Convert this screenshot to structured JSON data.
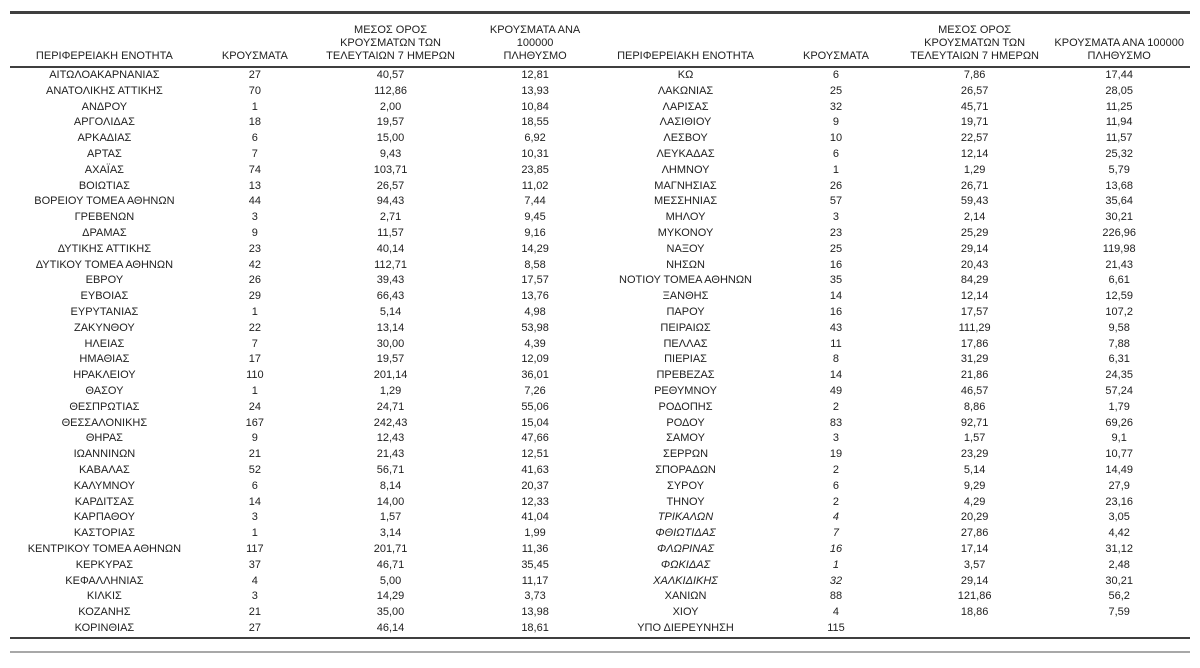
{
  "colors": {
    "text": "#212121",
    "rule_dark": "#3f3f3f",
    "rule_light": "#a8a8a8"
  },
  "headers": {
    "region": "ΠΕΡΙΦΕΡΕΙΑΚΗ ΕΝΟΤΗΤΑ",
    "cases": "ΚΡΟΥΣΜΑΤΑ",
    "avg7": "ΜΕΣΟΣ ΟΡΟΣ\nΚΡΟΥΣΜΑΤΩΝ ΤΩΝ\nΤΕΛΕΥΤΑΙΩΝ 7 ΗΜΕΡΩΝ",
    "per100k": "ΚΡΟΥΣΜΑΤΑ ΑΝΑ 100000\nΠΛΗΘΥΣΜΟ"
  },
  "left_rows": [
    {
      "name": "ΑΙΤΩΛΟΑΚΑΡΝΑΝΙΑΣ",
      "cases": "27",
      "avg7": "40,57",
      "per100k": "12,81"
    },
    {
      "name": "ΑΝΑΤΟΛΙΚΗΣ ΑΤΤΙΚΗΣ",
      "cases": "70",
      "avg7": "112,86",
      "per100k": "13,93"
    },
    {
      "name": "ΑΝΔΡΟΥ",
      "cases": "1",
      "avg7": "2,00",
      "per100k": "10,84"
    },
    {
      "name": "ΑΡΓΟΛΙΔΑΣ",
      "cases": "18",
      "avg7": "19,57",
      "per100k": "18,55"
    },
    {
      "name": "ΑΡΚΑΔΙΑΣ",
      "cases": "6",
      "avg7": "15,00",
      "per100k": "6,92"
    },
    {
      "name": "ΑΡΤΑΣ",
      "cases": "7",
      "avg7": "9,43",
      "per100k": "10,31"
    },
    {
      "name": "ΑΧΑΪΑΣ",
      "cases": "74",
      "avg7": "103,71",
      "per100k": "23,85"
    },
    {
      "name": "ΒΟΙΩΤΙΑΣ",
      "cases": "13",
      "avg7": "26,57",
      "per100k": "11,02"
    },
    {
      "name": "ΒΟΡΕΙΟΥ ΤΟΜΕΑ ΑΘΗΝΩΝ",
      "cases": "44",
      "avg7": "94,43",
      "per100k": "7,44"
    },
    {
      "name": "ΓΡΕΒΕΝΩΝ",
      "cases": "3",
      "avg7": "2,71",
      "per100k": "9,45"
    },
    {
      "name": "ΔΡΑΜΑΣ",
      "cases": "9",
      "avg7": "11,57",
      "per100k": "9,16"
    },
    {
      "name": "ΔΥΤΙΚΗΣ ΑΤΤΙΚΗΣ",
      "cases": "23",
      "avg7": "40,14",
      "per100k": "14,29"
    },
    {
      "name": "ΔΥΤΙΚΟΥ ΤΟΜΕΑ ΑΘΗΝΩΝ",
      "cases": "42",
      "avg7": "112,71",
      "per100k": "8,58"
    },
    {
      "name": "ΕΒΡΟΥ",
      "cases": "26",
      "avg7": "39,43",
      "per100k": "17,57"
    },
    {
      "name": "ΕΥΒΟΙΑΣ",
      "cases": "29",
      "avg7": "66,43",
      "per100k": "13,76"
    },
    {
      "name": "ΕΥΡΥΤΑΝΙΑΣ",
      "cases": "1",
      "avg7": "5,14",
      "per100k": "4,98"
    },
    {
      "name": "ΖΑΚΥΝΘΟΥ",
      "cases": "22",
      "avg7": "13,14",
      "per100k": "53,98"
    },
    {
      "name": "ΗΛΕΙΑΣ",
      "cases": "7",
      "avg7": "30,00",
      "per100k": "4,39"
    },
    {
      "name": "ΗΜΑΘΙΑΣ",
      "cases": "17",
      "avg7": "19,57",
      "per100k": "12,09"
    },
    {
      "name": "ΗΡΑΚΛΕΙΟΥ",
      "cases": "110",
      "avg7": "201,14",
      "per100k": "36,01"
    },
    {
      "name": "ΘΑΣΟΥ",
      "cases": "1",
      "avg7": "1,29",
      "per100k": "7,26"
    },
    {
      "name": "ΘΕΣΠΡΩΤΙΑΣ",
      "cases": "24",
      "avg7": "24,71",
      "per100k": "55,06"
    },
    {
      "name": "ΘΕΣΣΑΛΟΝΙΚΗΣ",
      "cases": "167",
      "avg7": "242,43",
      "per100k": "15,04"
    },
    {
      "name": "ΘΗΡΑΣ",
      "cases": "9",
      "avg7": "12,43",
      "per100k": "47,66"
    },
    {
      "name": "ΙΩΑΝΝΙΝΩΝ",
      "cases": "21",
      "avg7": "21,43",
      "per100k": "12,51"
    },
    {
      "name": "ΚΑΒΑΛΑΣ",
      "cases": "52",
      "avg7": "56,71",
      "per100k": "41,63"
    },
    {
      "name": "ΚΑΛΥΜΝΟΥ",
      "cases": "6",
      "avg7": "8,14",
      "per100k": "20,37"
    },
    {
      "name": "ΚΑΡΔΙΤΣΑΣ",
      "cases": "14",
      "avg7": "14,00",
      "per100k": "12,33"
    },
    {
      "name": "ΚΑΡΠΑΘΟΥ",
      "cases": "3",
      "avg7": "1,57",
      "per100k": "41,04"
    },
    {
      "name": "ΚΑΣΤΟΡΙΑΣ",
      "cases": "1",
      "avg7": "3,14",
      "per100k": "1,99"
    },
    {
      "name": "ΚΕΝΤΡΙΚΟΥ ΤΟΜΕΑ ΑΘΗΝΩΝ",
      "cases": "117",
      "avg7": "201,71",
      "per100k": "11,36"
    },
    {
      "name": "ΚΕΡΚΥΡΑΣ",
      "cases": "37",
      "avg7": "46,71",
      "per100k": "35,45"
    },
    {
      "name": "ΚΕΦΑΛΛΗΝΙΑΣ",
      "cases": "4",
      "avg7": "5,00",
      "per100k": "11,17"
    },
    {
      "name": "ΚΙΛΚΙΣ",
      "cases": "3",
      "avg7": "14,29",
      "per100k": "3,73"
    },
    {
      "name": "ΚΟΖΑΝΗΣ",
      "cases": "21",
      "avg7": "35,00",
      "per100k": "13,98"
    },
    {
      "name": "ΚΟΡΙΝΘΙΑΣ",
      "cases": "27",
      "avg7": "46,14",
      "per100k": "18,61"
    }
  ],
  "right_rows": [
    {
      "name": "ΚΩ",
      "cases": "6",
      "avg7": "7,86",
      "per100k": "17,44"
    },
    {
      "name": "ΛΑΚΩΝΙΑΣ",
      "cases": "25",
      "avg7": "26,57",
      "per100k": "28,05"
    },
    {
      "name": "ΛΑΡΙΣΑΣ",
      "cases": "32",
      "avg7": "45,71",
      "per100k": "11,25"
    },
    {
      "name": "ΛΑΣΙΘΙΟΥ",
      "cases": "9",
      "avg7": "19,71",
      "per100k": "11,94"
    },
    {
      "name": "ΛΕΣΒΟΥ",
      "cases": "10",
      "avg7": "22,57",
      "per100k": "11,57"
    },
    {
      "name": "ΛΕΥΚΑΔΑΣ",
      "cases": "6",
      "avg7": "12,14",
      "per100k": "25,32"
    },
    {
      "name": "ΛΗΜΝΟΥ",
      "cases": "1",
      "avg7": "1,29",
      "per100k": "5,79"
    },
    {
      "name": "ΜΑΓΝΗΣΙΑΣ",
      "cases": "26",
      "avg7": "26,71",
      "per100k": "13,68"
    },
    {
      "name": "ΜΕΣΣΗΝΙΑΣ",
      "cases": "57",
      "avg7": "59,43",
      "per100k": "35,64"
    },
    {
      "name": "ΜΗΛΟΥ",
      "cases": "3",
      "avg7": "2,14",
      "per100k": "30,21"
    },
    {
      "name": "ΜΥΚΟΝΟΥ",
      "cases": "23",
      "avg7": "25,29",
      "per100k": "226,96"
    },
    {
      "name": "ΝΑΞΟΥ",
      "cases": "25",
      "avg7": "29,14",
      "per100k": "119,98"
    },
    {
      "name": "ΝΗΣΩΝ",
      "cases": "16",
      "avg7": "20,43",
      "per100k": "21,43"
    },
    {
      "name": "ΝΟΤΙΟΥ ΤΟΜΕΑ ΑΘΗΝΩΝ",
      "cases": "35",
      "avg7": "84,29",
      "per100k": "6,61"
    },
    {
      "name": "ΞΑΝΘΗΣ",
      "cases": "14",
      "avg7": "12,14",
      "per100k": "12,59"
    },
    {
      "name": "ΠΑΡΟΥ",
      "cases": "16",
      "avg7": "17,57",
      "per100k": "107,2"
    },
    {
      "name": "ΠΕΙΡΑΙΩΣ",
      "cases": "43",
      "avg7": "111,29",
      "per100k": "9,58"
    },
    {
      "name": "ΠΕΛΛΑΣ",
      "cases": "11",
      "avg7": "17,86",
      "per100k": "7,88"
    },
    {
      "name": "ΠΙΕΡΙΑΣ",
      "cases": "8",
      "avg7": "31,29",
      "per100k": "6,31"
    },
    {
      "name": "ΠΡΕΒΕΖΑΣ",
      "cases": "14",
      "avg7": "21,86",
      "per100k": "24,35"
    },
    {
      "name": "ΡΕΘΥΜΝΟΥ",
      "cases": "49",
      "avg7": "46,57",
      "per100k": "57,24"
    },
    {
      "name": "ΡΟΔΟΠΗΣ",
      "cases": "2",
      "avg7": "8,86",
      "per100k": "1,79"
    },
    {
      "name": "ΡΟΔΟΥ",
      "cases": "83",
      "avg7": "92,71",
      "per100k": "69,26"
    },
    {
      "name": "ΣΑΜΟΥ",
      "cases": "3",
      "avg7": "1,57",
      "per100k": "9,1"
    },
    {
      "name": "ΣΕΡΡΩΝ",
      "cases": "19",
      "avg7": "23,29",
      "per100k": "10,77"
    },
    {
      "name": "ΣΠΟΡΑΔΩΝ",
      "cases": "2",
      "avg7": "5,14",
      "per100k": "14,49"
    },
    {
      "name": "ΣΥΡΟΥ",
      "cases": "6",
      "avg7": "9,29",
      "per100k": "27,9"
    },
    {
      "name": "ΤΗΝΟΥ",
      "cases": "2",
      "avg7": "4,29",
      "per100k": "23,16"
    },
    {
      "name": "ΤΡΙΚΑΛΩΝ",
      "cases": "4",
      "avg7": "20,29",
      "per100k": "3,05",
      "italic": true
    },
    {
      "name": "ΦΘΙΩΤΙΔΑΣ",
      "cases": "7",
      "avg7": "27,86",
      "per100k": "4,42",
      "italic": true
    },
    {
      "name": "ΦΛΩΡΙΝΑΣ",
      "cases": "16",
      "avg7": "17,14",
      "per100k": "31,12",
      "italic": true
    },
    {
      "name": "ΦΩΚΙΔΑΣ",
      "cases": "1",
      "avg7": "3,57",
      "per100k": "2,48",
      "italic": true
    },
    {
      "name": "ΧΑΛΚΙΔΙΚΗΣ",
      "cases": "32",
      "avg7": "29,14",
      "per100k": "30,21",
      "italic": true
    },
    {
      "name": "ΧΑΝΙΩΝ",
      "cases": "88",
      "avg7": "121,86",
      "per100k": "56,2"
    },
    {
      "name": "ΧΙΟΥ",
      "cases": "4",
      "avg7": "18,86",
      "per100k": "7,59"
    },
    {
      "name": "ΥΠΟ ΔΙΕΡΕΥΝΗΣΗ",
      "cases": "115",
      "avg7": "",
      "per100k": ""
    }
  ]
}
